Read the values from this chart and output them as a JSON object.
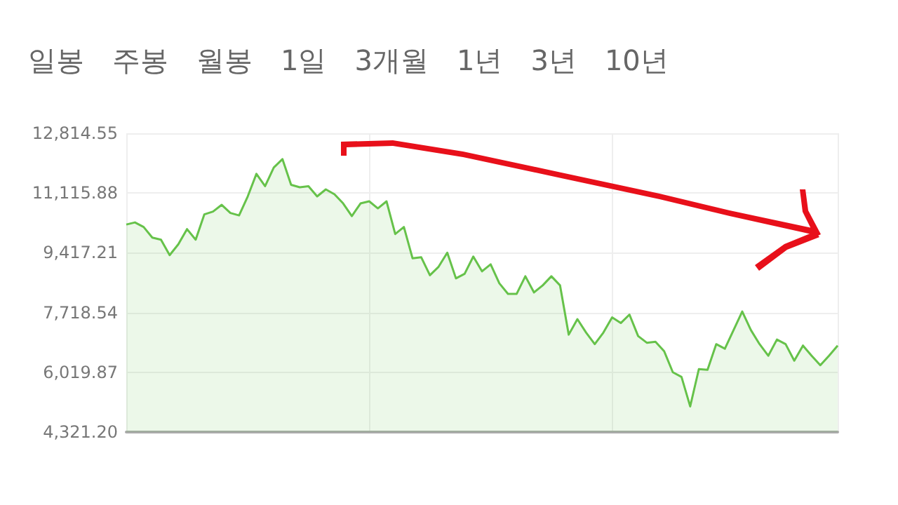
{
  "chart_data": {
    "type": "area",
    "annotations": [
      "일봉",
      "주봉",
      "월봉",
      "1일",
      "3개월",
      "1년",
      "3년",
      "10년"
    ],
    "categories": [
      null,
      null,
      null,
      null,
      null,
      null,
      null,
      null,
      null,
      null,
      null,
      null,
      null,
      null,
      null,
      null,
      null,
      null,
      null,
      null,
      null,
      null,
      null,
      null,
      null,
      null,
      null,
      null,
      null,
      null,
      null,
      null,
      null,
      null,
      null,
      null,
      null,
      null,
      null,
      null,
      null,
      null,
      null,
      null,
      null,
      null,
      null,
      null,
      null,
      null,
      null,
      null,
      null,
      null,
      null,
      null,
      null,
      null,
      null,
      null,
      null,
      null,
      null,
      null,
      null,
      null,
      null,
      null,
      null,
      null,
      null,
      null,
      null,
      null,
      null,
      null,
      null,
      null,
      null,
      null,
      null,
      null,
      null
    ],
    "series": [
      {
        "color": "#66c24a",
        "values": [
          10220,
          10280,
          10150,
          9850,
          9790,
          9350,
          9660,
          10090,
          9790,
          10510,
          10590,
          10780,
          10550,
          10480,
          11020,
          11660,
          11310,
          11840,
          12080,
          11350,
          11280,
          11310,
          11020,
          11220,
          11080,
          10820,
          10460,
          10820,
          10880,
          10680,
          10880,
          9950,
          10150,
          9260,
          9290,
          8780,
          9020,
          9420,
          8690,
          8820,
          9310,
          8890,
          9090,
          8550,
          8250,
          8250,
          8750,
          8290,
          8490,
          8750,
          8490,
          7090,
          7530,
          7150,
          6820,
          7150,
          7580,
          7420,
          7660,
          7050,
          6860,
          6890,
          6620,
          6020,
          5890,
          5050,
          6110,
          6090,
          6820,
          6690,
          7220,
          7750,
          7220,
          6820,
          6490,
          6950,
          6820,
          6350,
          6780,
          6490,
          6220,
          6490,
          6780
        ]
      }
    ],
    "ylim": [
      4321.2,
      12814.55
    ],
    "yticks": [
      {
        "value": 4321.2,
        "label": "4,321.20"
      },
      {
        "value": 6019.87,
        "label": "6,019.87"
      },
      {
        "value": 7718.54,
        "label": "7,718.54"
      },
      {
        "value": 9417.21,
        "label": "9,417.21"
      },
      {
        "value": 11115.88,
        "label": "11,115.88"
      },
      {
        "value": 12814.55,
        "label": "12,814.55"
      }
    ],
    "grid": true,
    "line_style": "solid",
    "tick_labels": "y"
  }
}
